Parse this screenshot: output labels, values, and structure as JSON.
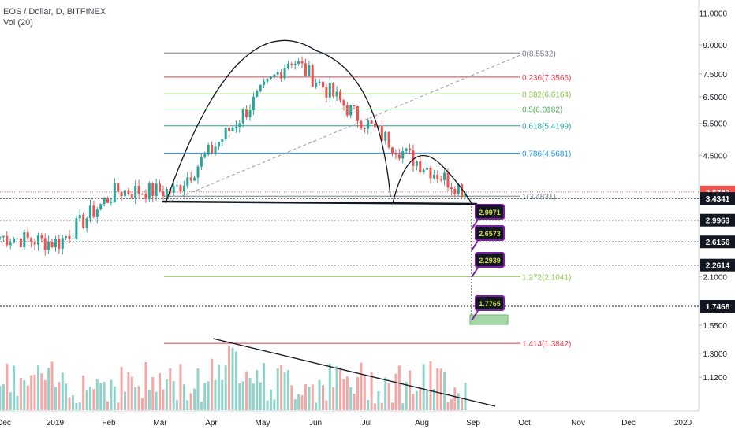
{
  "header": {
    "symbol_line": "EOS / Dollar, D, BITFINEX",
    "volume_label": "Vol (20)"
  },
  "chart_data": {
    "type": "candlestick",
    "scale": "log",
    "ylim": [
      1.05,
      12.2
    ],
    "x_ticks": [
      "Dec",
      "2019",
      "Feb",
      "Mar",
      "Apr",
      "May",
      "Jun",
      "Jul",
      "Aug",
      "Sep",
      "Oct",
      "Nov",
      "Dec",
      "2020"
    ],
    "y_ticks": [
      "11.0000",
      "9.0000",
      "7.5000",
      "6.5000",
      "5.5000",
      "4.5000",
      "2.1000",
      "1.5500",
      "1.3000",
      "1.1200"
    ],
    "fib_levels": [
      {
        "label": "0(8.5532)",
        "value": 8.5532,
        "color": "#787b86"
      },
      {
        "label": "0.236(7.3566)",
        "value": 7.3566,
        "color": "#f23645"
      },
      {
        "label": "0.382(6.6164)",
        "value": 6.6164,
        "color": "#8bc34a"
      },
      {
        "label": "0.5(6.0182)",
        "value": 6.0182,
        "color": "#4caf50"
      },
      {
        "label": "0.618(5.4199)",
        "value": 5.4199,
        "color": "#26a69a"
      },
      {
        "label": "0.786(4.5681)",
        "value": 4.5681,
        "color": "#2196f3"
      },
      {
        "label": "1(3.4831)",
        "value": 3.4831,
        "color": "#787b86"
      },
      {
        "label": "1.272(2.1041)",
        "value": 2.1041,
        "color": "#8bc34a"
      },
      {
        "label": "1.414(1.3842)",
        "value": 1.3842,
        "color": "#f23645"
      }
    ],
    "support_levels": [
      3.4341,
      2.9963,
      2.6156,
      2.2614,
      1.7468
    ],
    "price_badges": [
      {
        "label": "3.5783",
        "value": 3.5783,
        "color": "#ef5350"
      },
      {
        "label": "3.4341",
        "value": 3.4341,
        "color": "#131722"
      },
      {
        "label": "2.9963",
        "value": 2.9963,
        "color": "#131722"
      },
      {
        "label": "2.6156",
        "value": 2.6156,
        "color": "#131722"
      },
      {
        "label": "2.2614",
        "value": 2.2614,
        "color": "#131722"
      },
      {
        "label": "1.7468",
        "value": 1.7468,
        "color": "#131722"
      }
    ],
    "callouts": [
      "2.9971",
      "2.6573",
      "2.2939",
      "1.7765"
    ],
    "colors": {
      "up": "#26a69a",
      "down": "#ef5350",
      "vol_up": "#8fd3cb",
      "vol_down": "#f5a7a5",
      "callout": "#7b1fa2",
      "callout_text": "#cddc39"
    },
    "monthly_closes": [
      {
        "month": "Dec",
        "close": 2.7
      },
      {
        "month": "2019",
        "close": 2.6
      },
      {
        "month": "Feb",
        "close": 3.6
      },
      {
        "month": "Mar",
        "close": 3.6
      },
      {
        "month": "Apr",
        "close": 5.4
      },
      {
        "month": "May",
        "close": 8.3
      },
      {
        "month": "Jun",
        "close": 6.0
      },
      {
        "month": "Jul",
        "close": 4.5
      },
      {
        "month": "Aug",
        "close": 3.6
      }
    ]
  }
}
